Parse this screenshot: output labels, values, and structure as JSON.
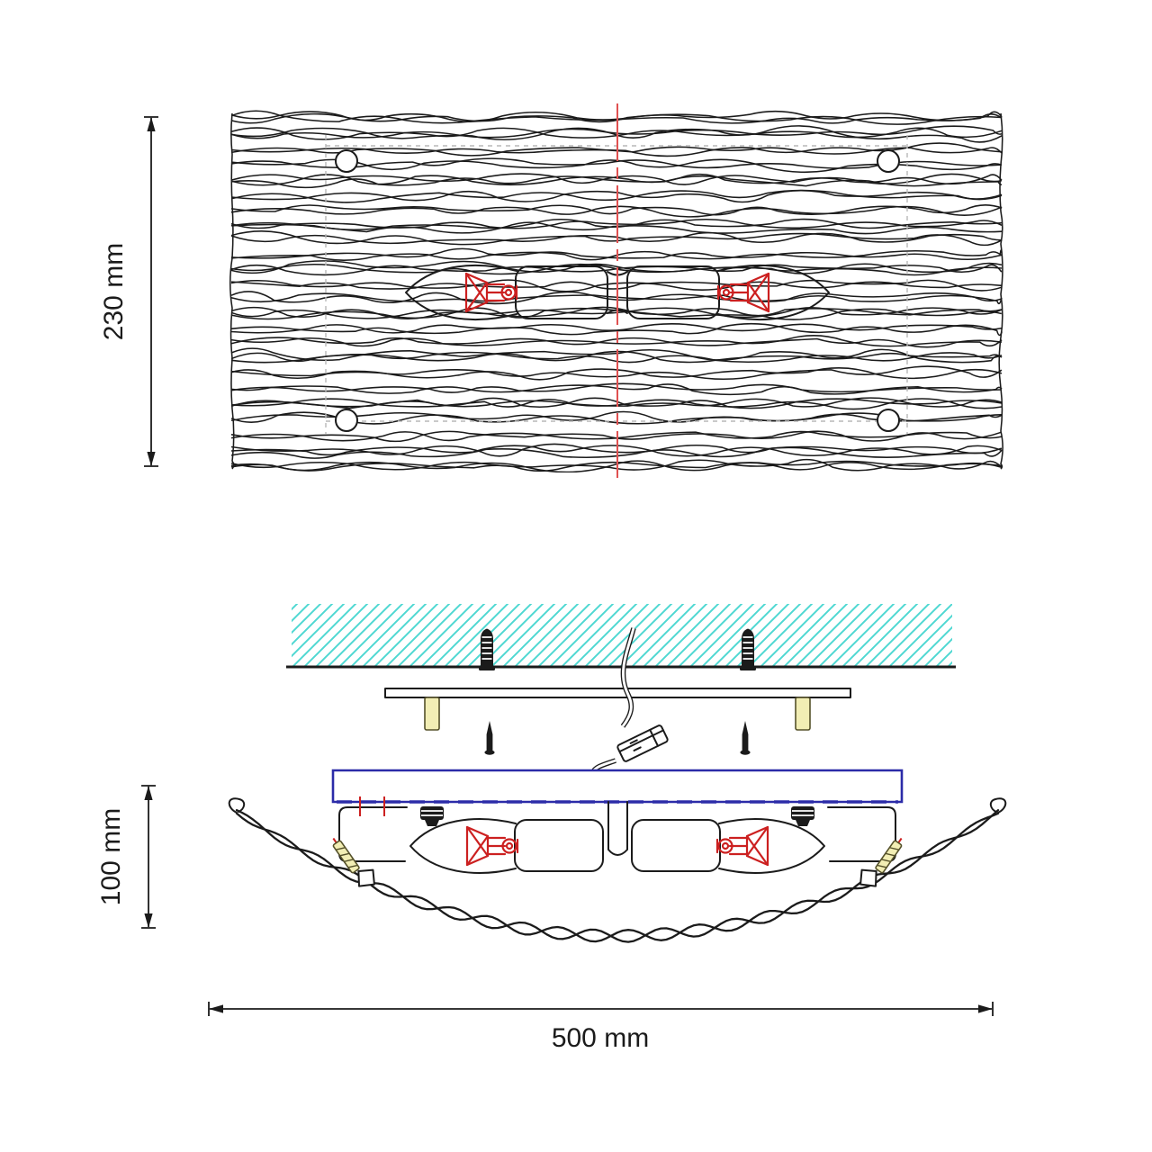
{
  "drawing": {
    "dim_top_height": "230 mm",
    "dim_side_height": "100 mm",
    "dim_width": "500 mm"
  },
  "colors": {
    "ink": "#1b1b1b",
    "red": "#cc2020",
    "clred": "#e05151",
    "cyan": "#4fd8d2",
    "navy": "#2b2ba8",
    "brass": "#f2eeb4",
    "brassd": "#55512a",
    "gray": "#b8b8b8",
    "white": "#ffffff"
  }
}
